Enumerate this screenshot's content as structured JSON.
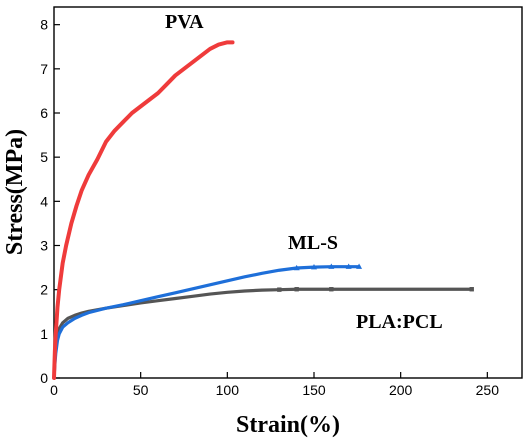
{
  "chart_data": {
    "type": "line",
    "title": "",
    "xlabel": "Strain(%)",
    "ylabel": "Stress(MPa)",
    "xlim": [
      0,
      270
    ],
    "ylim": [
      0,
      8.4
    ],
    "xticks": [
      "0",
      "50",
      "100",
      "150",
      "200",
      "250"
    ],
    "yticks": [
      "0",
      "1",
      "2",
      "3",
      "4",
      "5",
      "6",
      "7",
      "8"
    ],
    "grid": false,
    "legend": "none",
    "series": [
      {
        "name": "PVA",
        "color": "#ef3b3b",
        "marker": "none",
        "x": [
          0,
          0.5,
          1,
          2,
          3,
          5,
          7,
          10,
          13,
          16,
          20,
          25,
          30,
          35,
          40,
          45,
          50,
          55,
          60,
          65,
          70,
          75,
          80,
          85,
          90,
          95,
          100,
          103
        ],
        "y": [
          0,
          0.6,
          1.0,
          1.6,
          2.0,
          2.6,
          3.0,
          3.5,
          3.9,
          4.25,
          4.6,
          4.95,
          5.35,
          5.6,
          5.8,
          6.0,
          6.15,
          6.3,
          6.45,
          6.65,
          6.85,
          7.0,
          7.15,
          7.3,
          7.45,
          7.55,
          7.6,
          7.6
        ]
      },
      {
        "name": "ML-S",
        "color": "#1e6fd9",
        "marker": "triangle",
        "x": [
          0,
          0.5,
          1,
          2,
          3,
          5,
          8,
          12,
          16,
          20,
          30,
          40,
          50,
          60,
          70,
          80,
          90,
          100,
          110,
          120,
          130,
          140,
          150,
          160,
          170,
          176
        ],
        "y": [
          0,
          0.3,
          0.55,
          0.85,
          1.0,
          1.15,
          1.25,
          1.35,
          1.42,
          1.48,
          1.58,
          1.66,
          1.75,
          1.84,
          1.93,
          2.02,
          2.11,
          2.2,
          2.29,
          2.37,
          2.44,
          2.49,
          2.51,
          2.52,
          2.52,
          2.52
        ]
      },
      {
        "name": "PLA:PCL",
        "color": "#555555",
        "marker": "square",
        "x": [
          0,
          0.5,
          1,
          2,
          3,
          5,
          8,
          12,
          16,
          20,
          30,
          40,
          50,
          60,
          70,
          80,
          90,
          100,
          110,
          120,
          130,
          140,
          160,
          180,
          200,
          220,
          241
        ],
        "y": [
          0,
          0.45,
          0.75,
          1.0,
          1.12,
          1.25,
          1.35,
          1.42,
          1.47,
          1.51,
          1.58,
          1.64,
          1.7,
          1.75,
          1.8,
          1.85,
          1.9,
          1.94,
          1.97,
          1.99,
          2.0,
          2.01,
          2.01,
          2.01,
          2.01,
          2.01,
          2.01
        ]
      }
    ]
  }
}
